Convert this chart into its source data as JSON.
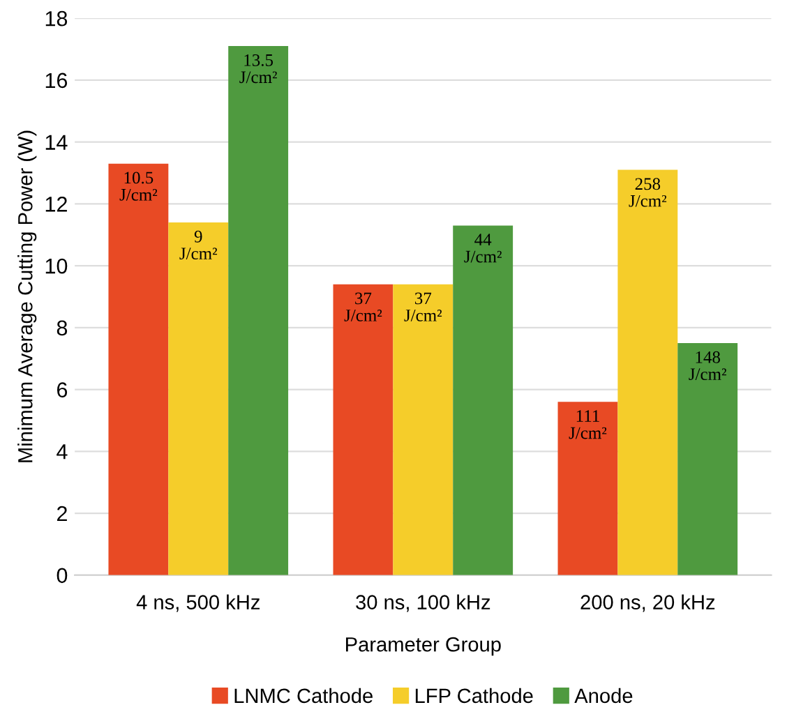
{
  "chart_data": {
    "type": "bar",
    "xlabel": "Parameter Group",
    "ylabel": "Minimum Average Cutting Power (W)",
    "categories": [
      "4 ns, 500 kHz",
      "30 ns, 100 kHz",
      "200 ns, 20 kHz"
    ],
    "series": [
      {
        "name": "LNMC Cathode",
        "color": "#e84a24",
        "values": [
          13.3,
          9.4,
          5.6
        ]
      },
      {
        "name": "LFP Cathode",
        "color": "#f5cd2a",
        "values": [
          11.4,
          9.4,
          13.1
        ]
      },
      {
        "name": "Anode",
        "color": "#4f9a3f",
        "values": [
          17.1,
          11.3,
          7.5
        ]
      }
    ],
    "annotations": [
      "10.5\nJ/cm²",
      "37\nJ/cm²",
      "111\nJ/cm²",
      "9\nJ/cm²",
      "37\nJ/cm²",
      "258\nJ/cm²",
      "13.5\nJ/cm²",
      "44\nJ/cm²",
      "148\nJ/cm²"
    ],
    "ylim": [
      0,
      18
    ],
    "yticks": [
      0,
      2,
      4,
      6,
      8,
      10,
      12,
      14,
      16,
      18
    ],
    "grid": "y",
    "legend": "bottom"
  }
}
